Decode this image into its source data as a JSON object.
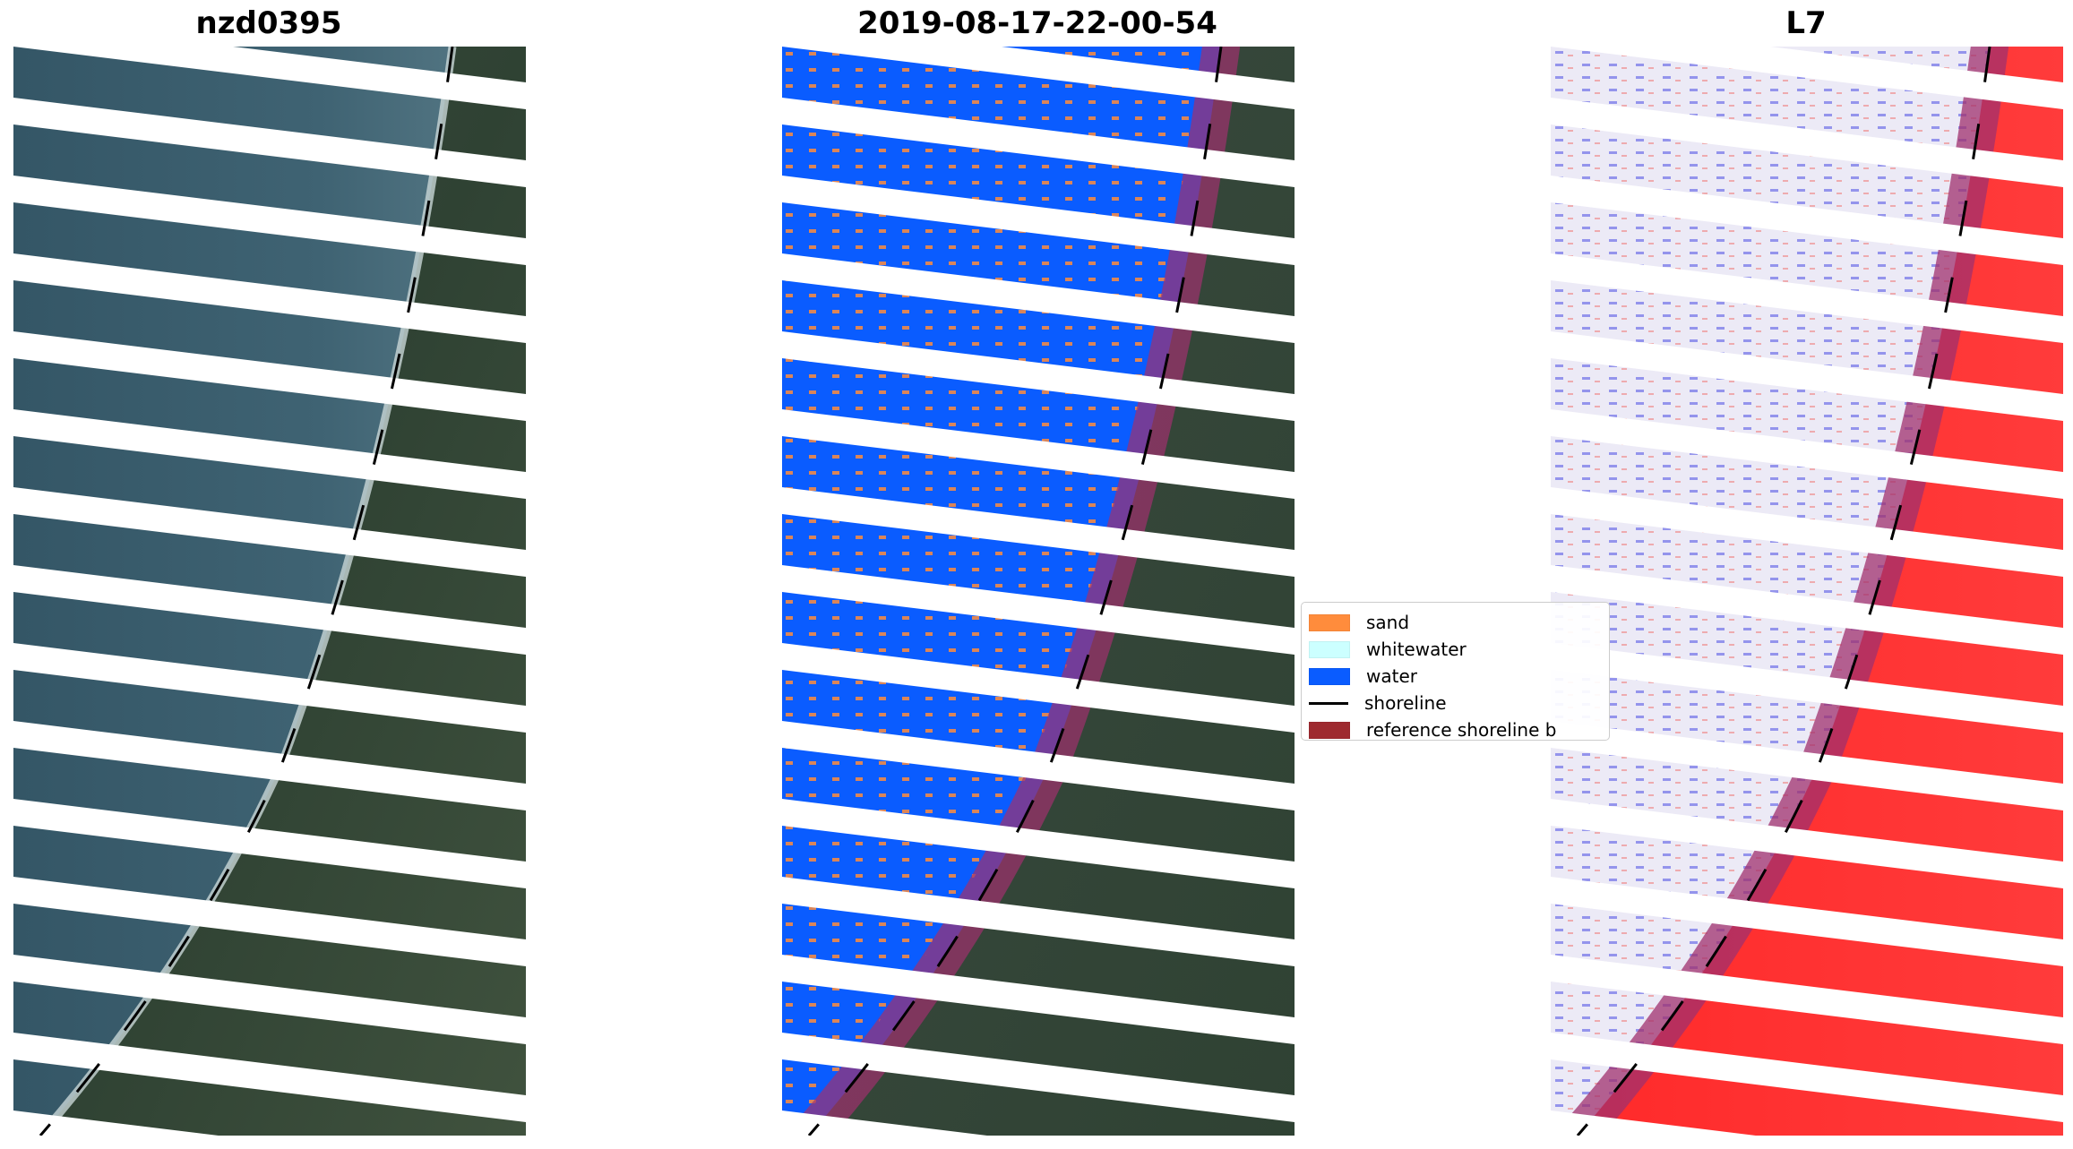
{
  "panels": [
    {
      "title": "nzd0395"
    },
    {
      "title": "2019-08-17-22-00-54"
    },
    {
      "title": "L7"
    }
  ],
  "legend": {
    "items": [
      {
        "label": "sand",
        "color": "#ff8c3c",
        "kind": "patch"
      },
      {
        "label": "whitewater",
        "color": "#ccffff",
        "kind": "patch"
      },
      {
        "label": "water",
        "color": "#0a5cff",
        "kind": "patch"
      },
      {
        "label": "shoreline",
        "color": "#000000",
        "kind": "line"
      },
      {
        "label": "reference shoreline b",
        "color": "#9e2a2f",
        "kind": "patch"
      }
    ]
  },
  "colors": {
    "sea": "#3a5c6e",
    "land": "#36483b",
    "water_class": "#0a5cff",
    "sand_class": "#ff8c3c",
    "reference_buffer": "#a0306e",
    "index_land": "#ff1a1a",
    "index_water": "#e8e8f8",
    "stripe_gap": "#ffffff"
  }
}
